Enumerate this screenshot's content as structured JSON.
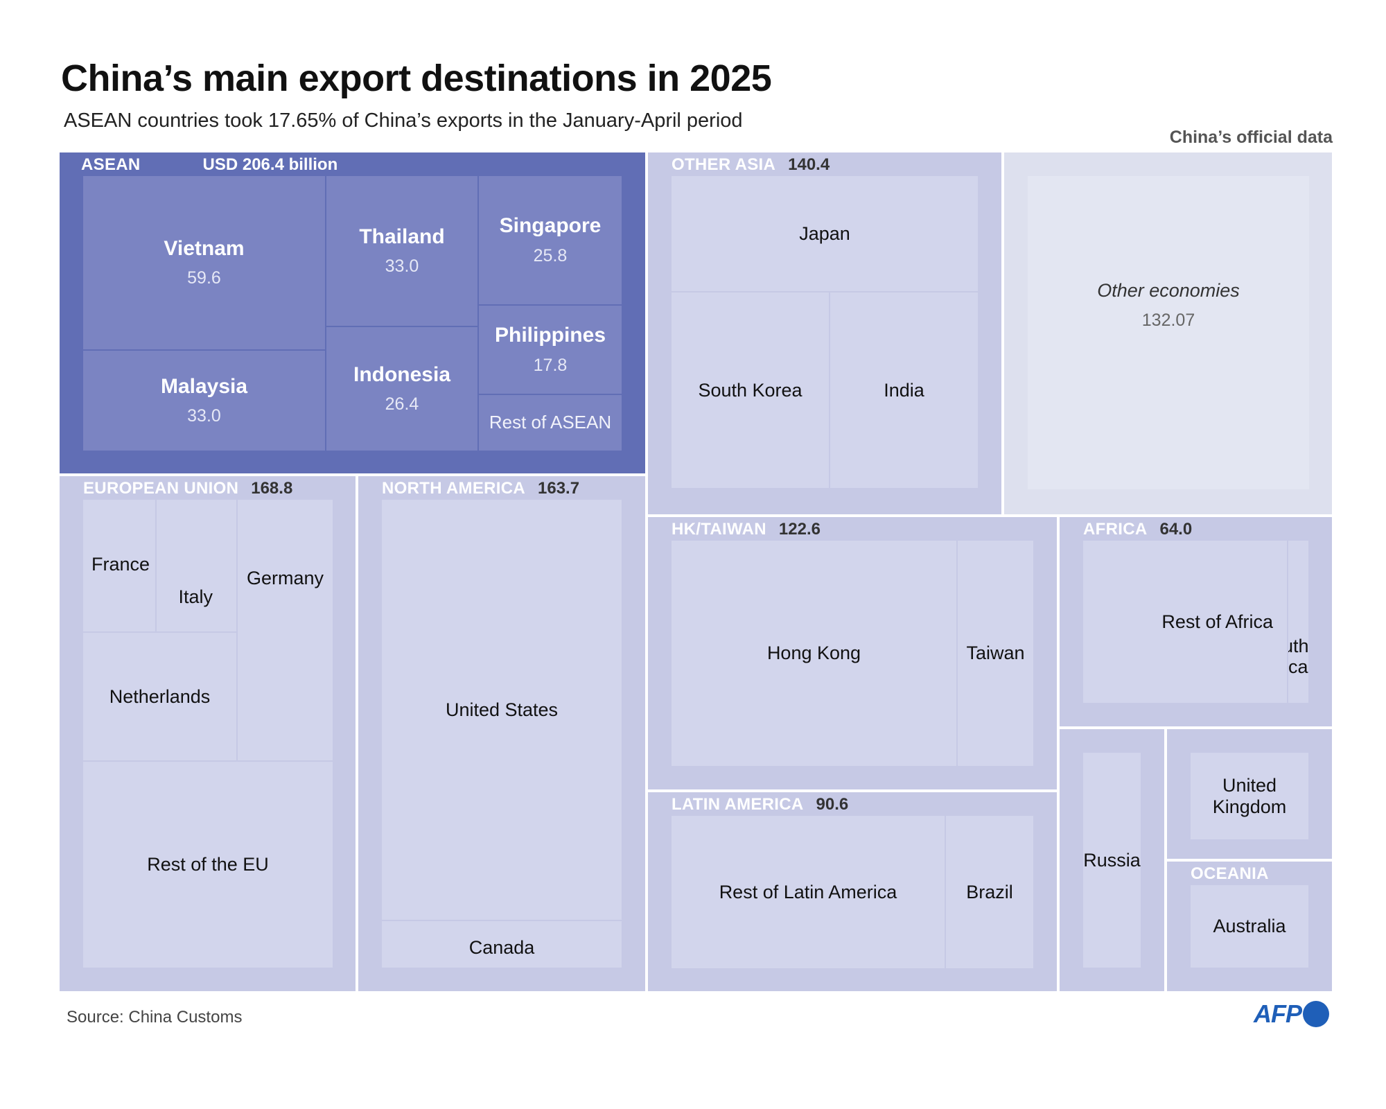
{
  "title": "China’s main export destinations in 2025",
  "subtitle": "ASEAN countries took 17.65% of China’s exports in the January-April period",
  "credit": "China’s official data",
  "source": "Source: China Customs",
  "logo_text": "AFP",
  "colors": {
    "asean_region": "#616eb5",
    "asean_tile": "#7b84c2",
    "region": "#c6c9e5",
    "tile": "#d2d5ec",
    "other_region": "#dde0ee",
    "other_tile": "#e3e6f2",
    "logo": "#1f5fb8"
  },
  "chart_data": {
    "type": "treemap",
    "title": "China’s main export destinations in 2025",
    "unit": "USD billion",
    "regions": [
      {
        "name": "ASEAN",
        "value_label": "USD 206.4 billion",
        "value": 206.4,
        "children": [
          {
            "name": "Vietnam",
            "value": 59.6,
            "value_label": "59.6"
          },
          {
            "name": "Malaysia",
            "value": 33.0,
            "value_label": "33.0"
          },
          {
            "name": "Thailand",
            "value": 33.0,
            "value_label": "33.0"
          },
          {
            "name": "Indonesia",
            "value": 26.4,
            "value_label": "26.4"
          },
          {
            "name": "Singapore",
            "value": 25.8,
            "value_label": "25.8"
          },
          {
            "name": "Philippines",
            "value": 17.8,
            "value_label": "17.8"
          },
          {
            "name": "Rest of ASEAN",
            "value": null,
            "value_label": null
          }
        ]
      },
      {
        "name": "OTHER ASIA",
        "value_label": "140.4",
        "value": 140.4,
        "children": [
          {
            "name": "Japan"
          },
          {
            "name": "South Korea"
          },
          {
            "name": "India"
          }
        ]
      },
      {
        "name": "Other economies",
        "value_label": "132.07",
        "value": 132.07,
        "children": []
      },
      {
        "name": "EUROPEAN UNION",
        "value_label": "168.8",
        "value": 168.8,
        "children": [
          {
            "name": "France"
          },
          {
            "name": "Italy"
          },
          {
            "name": "Germany"
          },
          {
            "name": "Netherlands"
          },
          {
            "name": "Rest of the EU"
          }
        ]
      },
      {
        "name": "NORTH AMERICA",
        "value_label": "163.7",
        "value": 163.7,
        "children": [
          {
            "name": "United States"
          },
          {
            "name": "Canada"
          }
        ]
      },
      {
        "name": "HK/TAIWAN",
        "value_label": "122.6",
        "value": 122.6,
        "children": [
          {
            "name": "Hong Kong"
          },
          {
            "name": "Taiwan"
          }
        ]
      },
      {
        "name": "LATIN AMERICA",
        "value_label": "90.6",
        "value": 90.6,
        "children": [
          {
            "name": "Rest of Latin America"
          },
          {
            "name": "Brazil"
          }
        ]
      },
      {
        "name": "AFRICA",
        "value_label": "64.0",
        "value": 64.0,
        "children": [
          {
            "name": "Rest of Africa"
          },
          {
            "name": "South Africa"
          }
        ]
      },
      {
        "name": "",
        "value_label": null,
        "value": null,
        "children": [
          {
            "name": "Russia"
          }
        ]
      },
      {
        "name": "",
        "value_label": null,
        "value": null,
        "children": [
          {
            "name": "United Kingdom"
          }
        ]
      },
      {
        "name": "OCEANIA",
        "value_label": null,
        "value": null,
        "children": [
          {
            "name": "Australia"
          }
        ]
      }
    ]
  }
}
